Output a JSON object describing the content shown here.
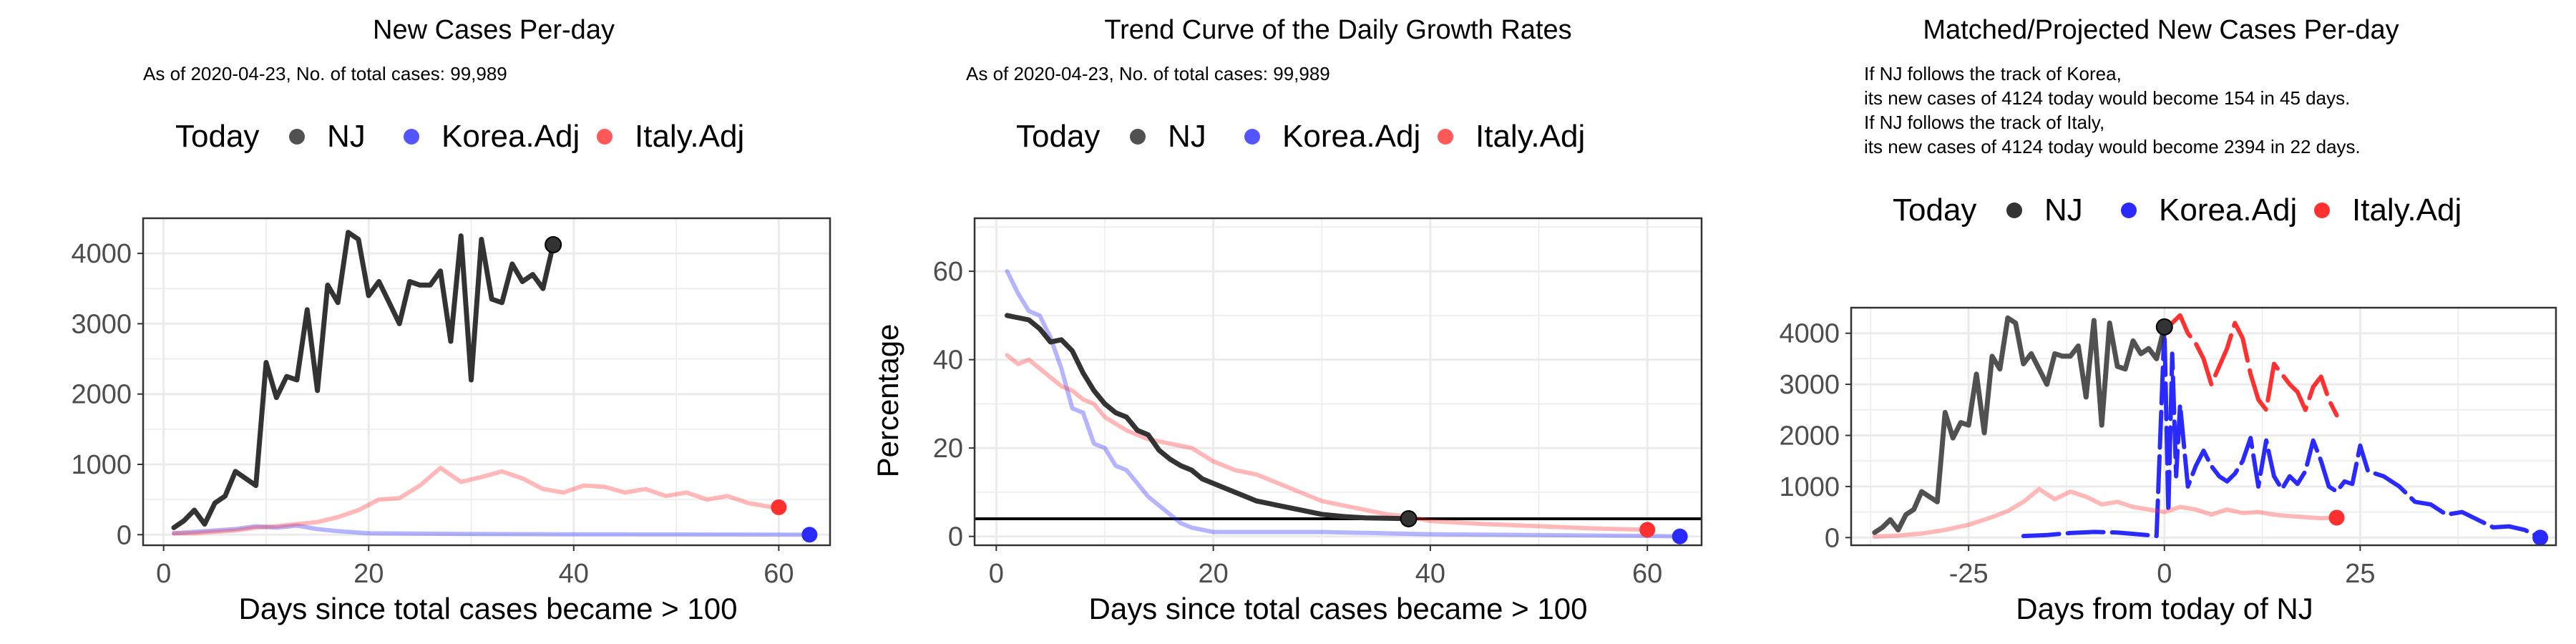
{
  "colors": {
    "NJ": "#333333",
    "Korea.Adj": "#2a2aff",
    "Italy.Adj": "#ff3030",
    "grid": "#ebebeb",
    "frame": "#333333"
  },
  "legend": {
    "title": "Today",
    "items": [
      "NJ",
      "Korea.Adj",
      "Italy.Adj"
    ]
  },
  "panels": [
    {
      "title": "New Cases Per-day",
      "subtitle": [
        "As of 2020-04-23, No. of total cases: 99,989"
      ],
      "xlabel": "Days since total cases became > 100",
      "ylabel": "",
      "xticks": [
        "0",
        "20",
        "40",
        "60"
      ],
      "yticks": [
        "0",
        "1000",
        "2000",
        "3000",
        "4000"
      ],
      "today_points": [
        {
          "series": "NJ",
          "x": 38,
          "y": 4124
        },
        {
          "series": "Korea.Adj",
          "x": 63,
          "y": 0
        },
        {
          "series": "Italy.Adj",
          "x": 60,
          "y": 390
        }
      ]
    },
    {
      "title": "Trend Curve of the Daily Growth Rates",
      "subtitle": [
        "As of 2020-04-23, No. of total cases: 99,989"
      ],
      "xlabel": "Days since total cases became > 100",
      "ylabel": "Percentage",
      "xticks": [
        "0",
        "20",
        "40",
        "60"
      ],
      "yticks": [
        "0",
        "20",
        "40",
        "60"
      ],
      "today_points": [
        {
          "series": "NJ",
          "x": 38,
          "y": 4
        },
        {
          "series": "Korea.Adj",
          "x": 63,
          "y": 0
        },
        {
          "series": "Italy.Adj",
          "x": 60,
          "y": 1.5
        }
      ]
    },
    {
      "title": "Matched/Projected New Cases Per-day",
      "subtitle": [
        "If NJ follows the track of Korea,",
        "its new cases of 4124 today would become 154 in 45 days.",
        "If NJ follows the track of Italy,",
        "its new cases of 4124 today would become 2394 in 22 days."
      ],
      "xlabel": "Days from today of NJ",
      "ylabel": "",
      "xticks": [
        "-25",
        "0",
        "25"
      ],
      "yticks": [
        "0",
        "1000",
        "2000",
        "3000",
        "4000"
      ],
      "today_points": [
        {
          "series": "NJ",
          "x": 0,
          "y": 4124
        },
        {
          "series": "Korea.Adj",
          "x": 48,
          "y": 0
        },
        {
          "series": "Italy.Adj",
          "x": 22,
          "y": 390
        }
      ]
    }
  ],
  "chart_data": [
    {
      "type": "line",
      "title": "New Cases Per-day",
      "xlabel": "Days since total cases became > 100",
      "ylabel": "",
      "xlim": [
        -2,
        65
      ],
      "ylim": [
        -150,
        4500
      ],
      "grid": true,
      "legend_position": "top",
      "series": [
        {
          "name": "NJ",
          "x": [
            1,
            2,
            3,
            4,
            5,
            6,
            7,
            8,
            9,
            10,
            11,
            12,
            13,
            14,
            15,
            16,
            17,
            18,
            19,
            20,
            21,
            22,
            23,
            24,
            25,
            26,
            27,
            28,
            29,
            30,
            31,
            32,
            33,
            34,
            35,
            36,
            37,
            38
          ],
          "y": [
            100,
            200,
            350,
            150,
            450,
            550,
            900,
            800,
            700,
            2450,
            1950,
            2250,
            2200,
            3200,
            2050,
            3550,
            3300,
            4300,
            4200,
            3400,
            3600,
            3300,
            3000,
            3600,
            3550,
            3550,
            3750,
            2750,
            4250,
            2200,
            4200,
            3350,
            3300,
            3850,
            3600,
            3700,
            3500,
            4124
          ]
        },
        {
          "name": "Korea.Adj",
          "x": [
            1,
            3,
            5,
            7,
            9,
            11,
            13,
            15,
            17,
            20,
            25,
            30,
            35,
            40,
            45,
            50,
            55,
            60,
            63
          ],
          "y": [
            20,
            40,
            60,
            80,
            120,
            100,
            130,
            80,
            50,
            20,
            15,
            10,
            8,
            6,
            5,
            4,
            3,
            2,
            0
          ]
        },
        {
          "name": "Italy.Adj",
          "x": [
            1,
            3,
            5,
            7,
            9,
            11,
            13,
            15,
            17,
            19,
            21,
            23,
            25,
            27,
            29,
            31,
            33,
            35,
            37,
            39,
            41,
            43,
            45,
            47,
            49,
            51,
            53,
            55,
            57,
            59,
            60
          ],
          "y": [
            20,
            20,
            40,
            60,
            100,
            120,
            150,
            180,
            250,
            350,
            500,
            520,
            700,
            950,
            750,
            820,
            900,
            800,
            650,
            600,
            700,
            680,
            600,
            650,
            550,
            600,
            500,
            550,
            450,
            400,
            390
          ]
        }
      ]
    },
    {
      "type": "line",
      "title": "Trend Curve of the Daily Growth Rates",
      "xlabel": "Days since total cases became > 100",
      "ylabel": "Percentage",
      "xlim": [
        -2,
        65
      ],
      "ylim": [
        -2,
        72
      ],
      "grid": true,
      "legend_position": "top",
      "reference_line_y": 4,
      "series": [
        {
          "name": "NJ",
          "x": [
            1,
            2,
            3,
            4,
            5,
            6,
            7,
            8,
            9,
            10,
            11,
            12,
            13,
            14,
            15,
            16,
            17,
            18,
            19,
            20,
            21,
            22,
            24,
            26,
            28,
            30,
            32,
            34,
            36,
            38
          ],
          "y": [
            50,
            49.5,
            49,
            47,
            44,
            44.5,
            42,
            37,
            33,
            30,
            28,
            27,
            24,
            23,
            19.5,
            17.5,
            16,
            15,
            13,
            12,
            11,
            10,
            8,
            7,
            6,
            5,
            4.5,
            4.2,
            4.1,
            4
          ]
        },
        {
          "name": "Korea.Adj",
          "x": [
            1,
            2,
            3,
            4,
            5,
            6,
            7,
            8,
            9,
            10,
            11,
            12,
            13,
            14,
            15,
            16,
            17,
            18,
            20,
            25,
            30,
            40,
            50,
            60,
            63
          ],
          "y": [
            60,
            55,
            51,
            50,
            45,
            38,
            29,
            28,
            21,
            20,
            16,
            15,
            12,
            9,
            7,
            5,
            3,
            2,
            1,
            1,
            1,
            0.5,
            0.3,
            0.1,
            0
          ]
        },
        {
          "name": "Italy.Adj",
          "x": [
            1,
            2,
            3,
            4,
            5,
            6,
            7,
            8,
            9,
            10,
            12,
            14,
            16,
            18,
            20,
            22,
            24,
            26,
            28,
            30,
            32,
            34,
            36,
            38,
            40,
            45,
            50,
            55,
            60
          ],
          "y": [
            41,
            39,
            40,
            38,
            36,
            34,
            33,
            31,
            30,
            27,
            24,
            22,
            21,
            20,
            17,
            15,
            14,
            12,
            10,
            8,
            7,
            6,
            5,
            4.5,
            3.5,
            2.8,
            2.3,
            1.8,
            1.5
          ]
        }
      ]
    },
    {
      "type": "line",
      "title": "Matched/Projected New Cases Per-day",
      "xlabel": "Days from today of NJ",
      "ylabel": "",
      "xlim": [
        -40,
        50
      ],
      "ylim": [
        -150,
        4500
      ],
      "grid": true,
      "legend_position": "top",
      "series": [
        {
          "name": "NJ",
          "x": [
            -37,
            -36,
            -35,
            -34,
            -33,
            -32,
            -31,
            -30,
            -29,
            -28,
            -27,
            -26,
            -25,
            -24,
            -23,
            -22,
            -21,
            -20,
            -19,
            -18,
            -17,
            -16,
            -15,
            -14,
            -13,
            -12,
            -11,
            -10,
            -9,
            -8,
            -7,
            -6,
            -5,
            -4,
            -3,
            -2,
            -1,
            0
          ],
          "y": [
            100,
            200,
            350,
            150,
            450,
            550,
            900,
            800,
            700,
            2450,
            1950,
            2250,
            2200,
            3200,
            2050,
            3550,
            3300,
            4300,
            4200,
            3400,
            3600,
            3300,
            3000,
            3600,
            3550,
            3550,
            3750,
            2750,
            4250,
            2200,
            4200,
            3350,
            3300,
            3850,
            3600,
            3700,
            3500,
            4124
          ]
        },
        {
          "name": "Korea.Adj",
          "x": [
            -18,
            -15,
            -12,
            -9,
            -6,
            -3,
            -1,
            0,
            0.5,
            1,
            1.5,
            2,
            3,
            4,
            5,
            6,
            7,
            8,
            9,
            10,
            11,
            12,
            13,
            14,
            15,
            16,
            17,
            18,
            19,
            20,
            21,
            22,
            23,
            24,
            25,
            26,
            28,
            30,
            32,
            34,
            36,
            38,
            40,
            42,
            44,
            46,
            48
          ],
          "y": [
            30,
            50,
            90,
            110,
            100,
            60,
            30,
            4124,
            500,
            3600,
            1200,
            2600,
            1000,
            1400,
            1700,
            1400,
            1200,
            1100,
            1250,
            1500,
            1950,
            1000,
            1900,
            1200,
            950,
            1200,
            1050,
            1300,
            1900,
            1500,
            1000,
            900,
            1100,
            1050,
            1800,
            1300,
            1200,
            1000,
            700,
            650,
            450,
            500,
            350,
            200,
            220,
            150,
            0
          ]
        },
        {
          "name": "Italy.Adj",
          "x": [
            -37,
            -34,
            -31,
            -28,
            -25,
            -22,
            -20,
            -18,
            -16,
            -14,
            -12,
            -10,
            -8,
            -6,
            -4,
            -2,
            0,
            2,
            4,
            6,
            8,
            10,
            12,
            14,
            16,
            18,
            20,
            22
          ],
          "y": [
            20,
            40,
            80,
            150,
            250,
            400,
            520,
            700,
            950,
            750,
            900,
            800,
            650,
            700,
            600,
            550,
            500,
            600,
            550,
            450,
            550,
            480,
            500,
            450,
            420,
            400,
            380,
            390
          ]
        },
        {
          "name": "Italy.Adj (projected)",
          "x": [
            0,
            1,
            2,
            3,
            4,
            5,
            6,
            7,
            8,
            9,
            10,
            11,
            12,
            13,
            14,
            15,
            16,
            17,
            18,
            19,
            20,
            21,
            22
          ],
          "y": [
            4124,
            4200,
            4350,
            4000,
            3800,
            3500,
            3000,
            3350,
            3700,
            4200,
            3900,
            3200,
            2700,
            2500,
            3400,
            3200,
            3000,
            2850,
            2500,
            2950,
            3150,
            2700,
            2394
          ]
        }
      ]
    }
  ]
}
